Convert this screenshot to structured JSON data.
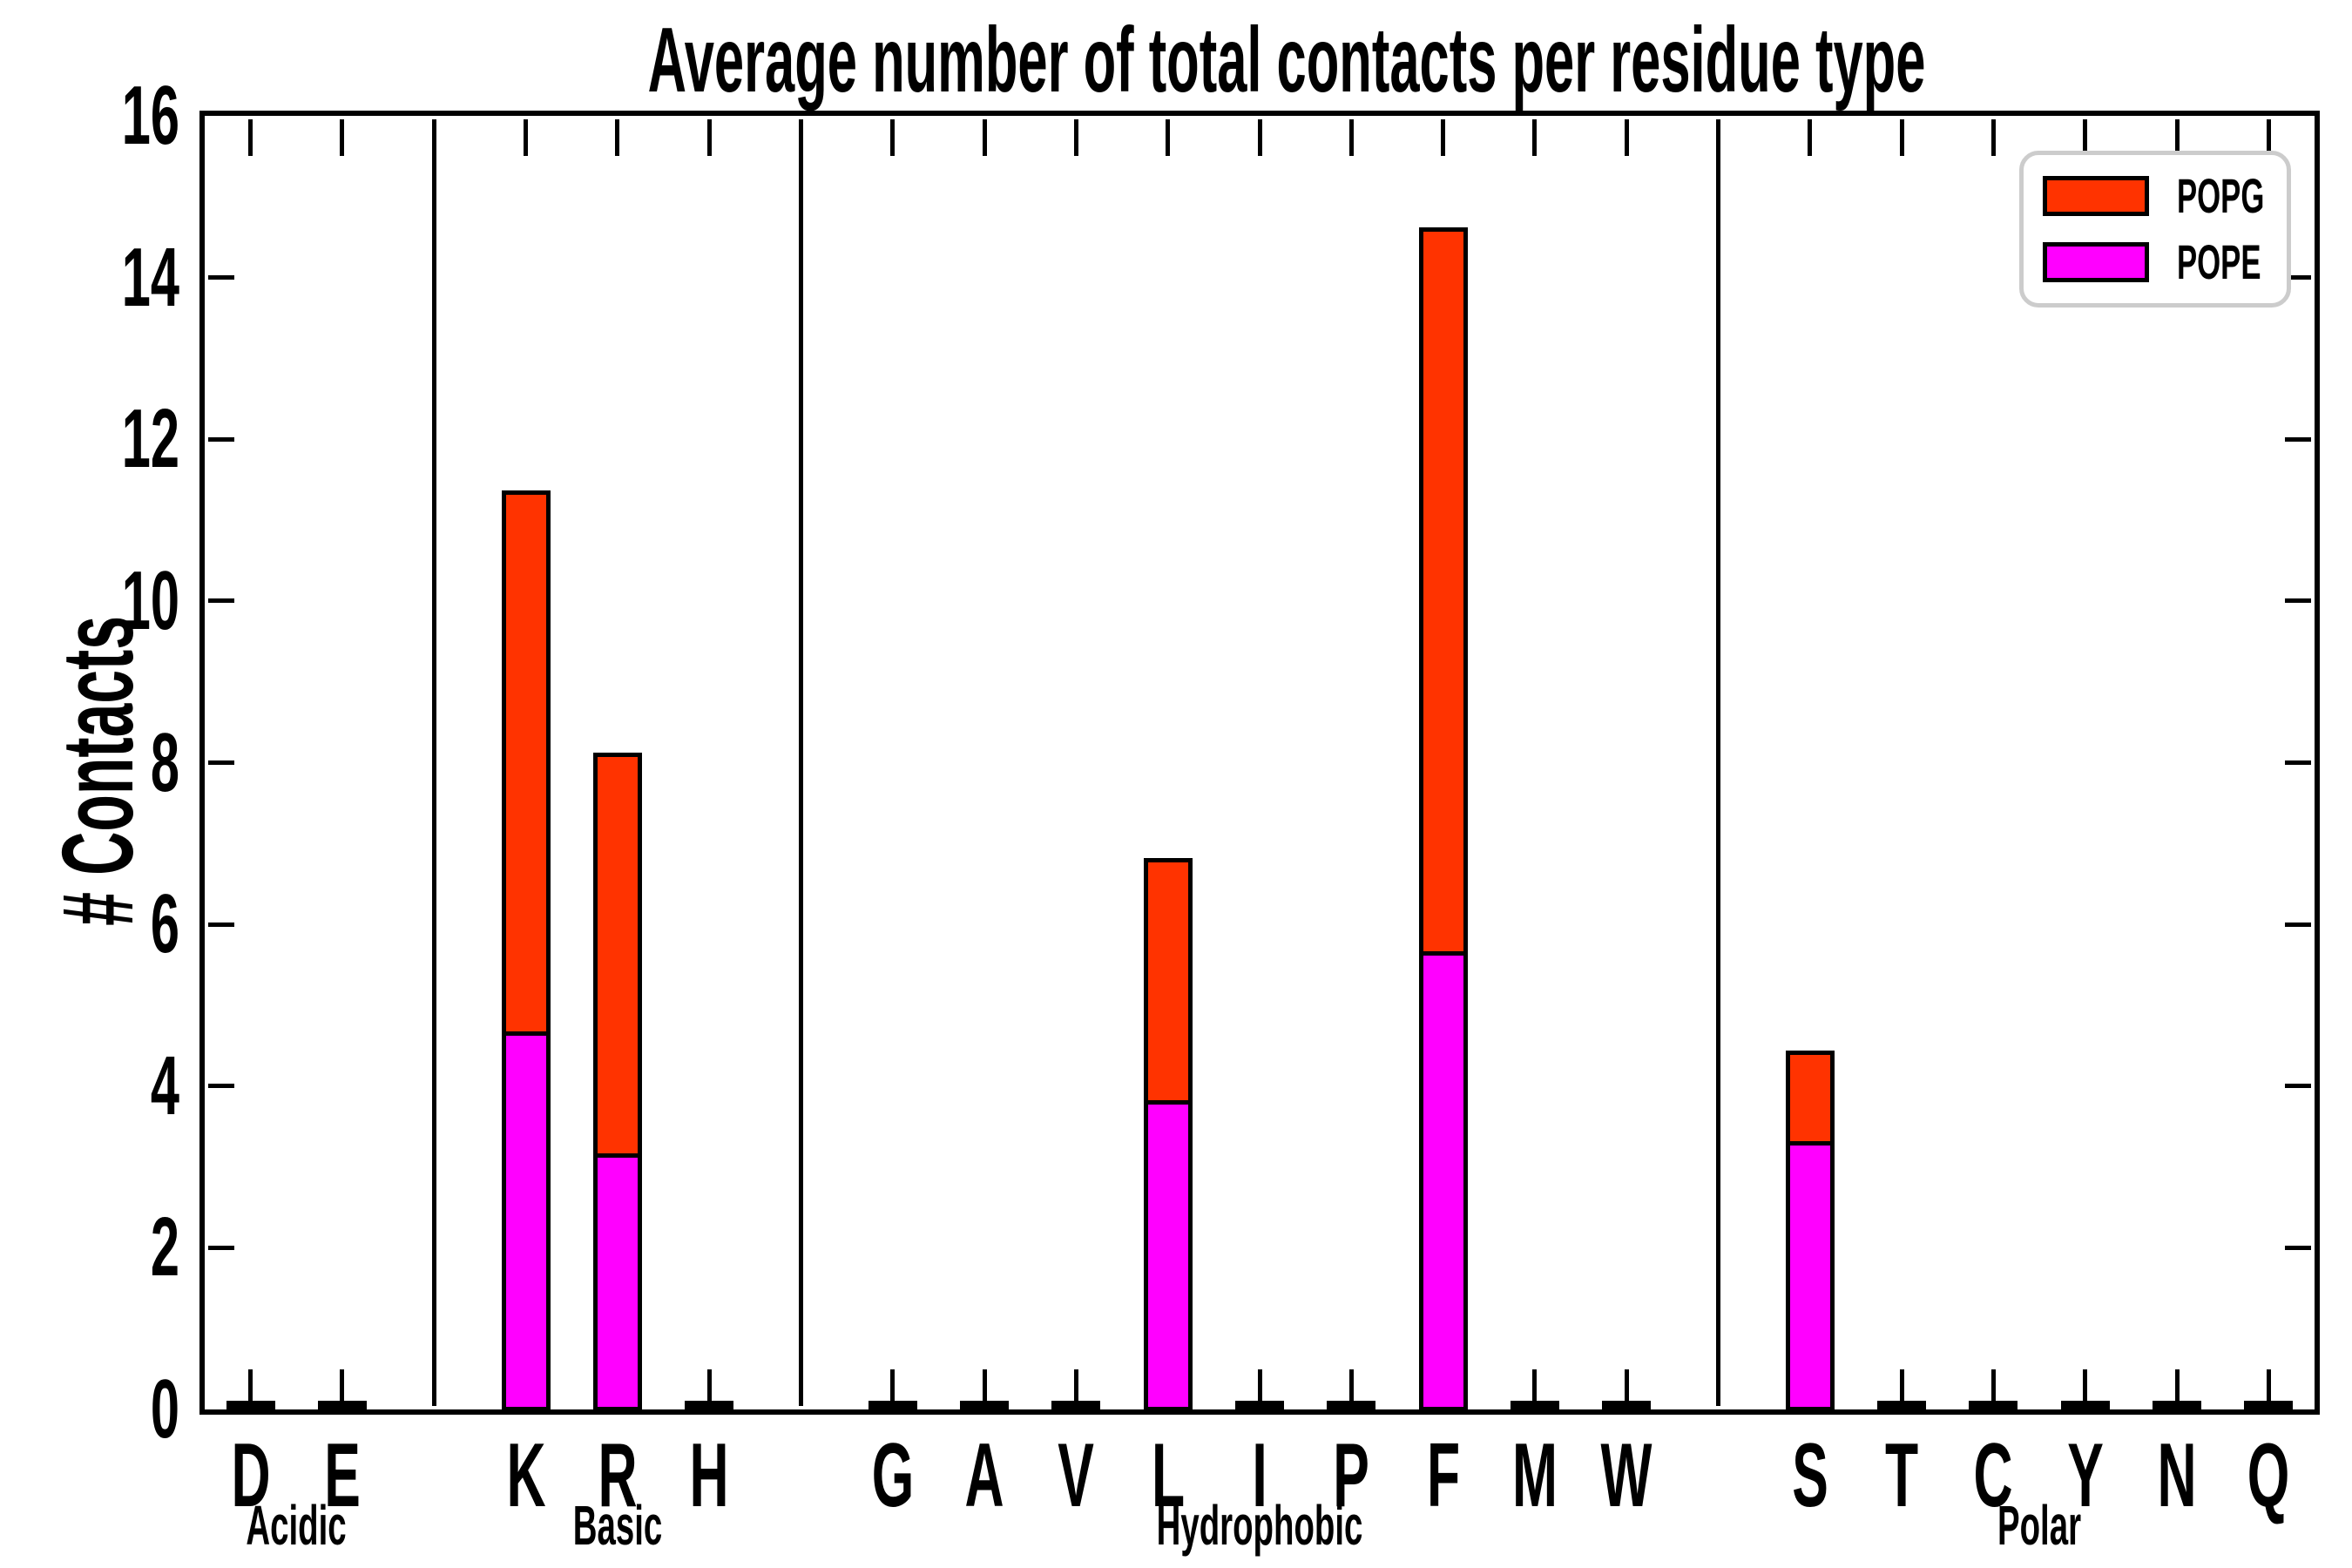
{
  "title": "Average number of total contacts per residue type",
  "y_axis": {
    "label": "# Contacts",
    "ticks": [
      "0",
      "2",
      "4",
      "6",
      "8",
      "10",
      "12",
      "14",
      "16"
    ]
  },
  "legend": {
    "items": [
      {
        "label": "POPG",
        "color": "#ff3300"
      },
      {
        "label": "POPE",
        "color": "#ff00ff"
      }
    ]
  },
  "chart_data": {
    "type": "bar",
    "stacked": true,
    "title": "Average number of total contacts per residue type",
    "xlabel": "",
    "ylabel": "# Contacts",
    "ylim": [
      0,
      16
    ],
    "grid": false,
    "legend_position": "upper right",
    "groups": [
      {
        "name": "Acidic",
        "residues": [
          "D",
          "E"
        ]
      },
      {
        "name": "Basic",
        "residues": [
          "K",
          "R",
          "H"
        ]
      },
      {
        "name": "Hydrophobic",
        "residues": [
          "G",
          "A",
          "V",
          "L",
          "I",
          "P",
          "F",
          "M",
          "W"
        ]
      },
      {
        "name": "Polar",
        "residues": [
          "S",
          "T",
          "C",
          "Y",
          "N",
          "Q"
        ]
      }
    ],
    "categories": [
      "D",
      "E",
      "K",
      "R",
      "H",
      "G",
      "A",
      "V",
      "L",
      "I",
      "P",
      "F",
      "M",
      "W",
      "S",
      "T",
      "C",
      "Y",
      "N",
      "Q"
    ],
    "series": [
      {
        "name": "POPE",
        "color": "#ff00ff",
        "values": [
          0.04,
          0.04,
          4.65,
          3.15,
          0.04,
          0.04,
          0.04,
          0.04,
          3.8,
          0.04,
          0.04,
          5.65,
          0.04,
          0.04,
          3.3,
          0.04,
          0.04,
          0.04,
          0.04,
          0.04
        ]
      },
      {
        "name": "POPG",
        "color": "#ff3300",
        "values": [
          0.05,
          0.05,
          6.7,
          4.95,
          0.05,
          0.05,
          0.05,
          0.05,
          3.0,
          0.05,
          0.05,
          8.95,
          0.05,
          0.05,
          1.12,
          0.05,
          0.05,
          0.05,
          0.05,
          0.05
        ]
      }
    ]
  }
}
